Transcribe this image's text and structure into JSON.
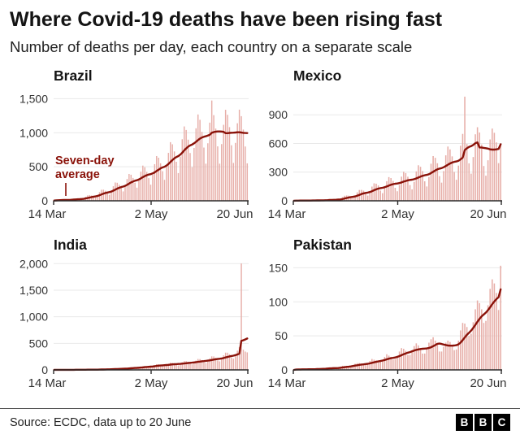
{
  "header": {
    "title": "Where Covid-19 deaths have been rising fast",
    "subtitle": "Number of deaths per day, each country on a separate scale"
  },
  "footer": {
    "source": "Source: ECDC, data up to 20 June",
    "logo_letters": [
      "B",
      "B",
      "C"
    ]
  },
  "chart_data": {
    "type": "bar",
    "title": "Where Covid-19 deaths have been rising fast",
    "subtitle": "Number of deaths per day, each country on a separate scale",
    "legend": "bars = daily deaths, dark line = seven-day average",
    "xticks": [
      "14 Mar",
      "2 May",
      "20 Jun"
    ],
    "style": {
      "bar_color": "#e7aea8",
      "line_color": "#8a1209",
      "annotation_color": "#8a1209",
      "axis_color": "#2b2b2b",
      "grid_color": "#e9e9e9",
      "tick_color": "#333333"
    },
    "charts": [
      {
        "title": "Brazil",
        "ymax": 1600,
        "yticks": [
          {
            "value": 0,
            "label": "0"
          },
          {
            "value": 500,
            "label": "500"
          },
          {
            "value": 1000,
            "label": "1,000"
          },
          {
            "value": 1500,
            "label": "1,500"
          }
        ],
        "annotation_lines": [
          "Seven-day",
          "average"
        ],
        "values": [
          4,
          8,
          12,
          16,
          16,
          15,
          12,
          8,
          15,
          24,
          32,
          34,
          32,
          26,
          19,
          37,
          59,
          80,
          84,
          79,
          66,
          50,
          85,
          127,
          162,
          163,
          147,
          120,
          88,
          147,
          214,
          269,
          265,
          236,
          190,
          138,
          224,
          320,
          394,
          383,
          336,
          267,
          193,
          307,
          428,
          517,
          493,
          425,
          333,
          237,
          382,
          538,
          657,
          633,
          551,
          435,
          308,
          498,
          704,
          861,
          830,
          725,
          573,
          407,
          649,
          904,
          1092,
          1040,
          898,
          702,
          495,
          776,
          1065,
          1268,
          1190,
          1013,
          782,
          545,
          845,
          1148,
          1473,
          1258,
          1061,
          800,
          545,
          833,
          1116,
          1337,
          1263,
          1082,
          816,
          556,
          850,
          1139,
          1339,
          1243,
          1046,
          798,
          550
        ]
      },
      {
        "title": "Mexico",
        "ymax": 1140,
        "yticks": [
          {
            "value": 0,
            "label": "0"
          },
          {
            "value": 300,
            "label": "300"
          },
          {
            "value": 600,
            "label": "600"
          },
          {
            "value": 900,
            "label": "900"
          }
        ],
        "values": [
          1,
          2,
          2,
          4,
          4,
          3,
          2,
          2,
          3,
          5,
          6,
          7,
          7,
          5,
          4,
          7,
          12,
          15,
          16,
          15,
          11,
          11,
          21,
          38,
          53,
          56,
          54,
          38,
          30,
          54,
          89,
          113,
          114,
          106,
          72,
          55,
          94,
          149,
          183,
          179,
          161,
          107,
          80,
          133,
          205,
          248,
          238,
          208,
          136,
          100,
          165,
          253,
          304,
          290,
          252,
          164,
          120,
          199,
          308,
          372,
          356,
          311,
          204,
          150,
          249,
          388,
          468,
          450,
          393,
          258,
          190,
          311,
          476,
          568,
          538,
          465,
          302,
          220,
          368,
          576,
          700,
          1090,
          594,
          392,
          284,
          458,
          696,
          770,
          715,
          589,
          364,
          263,
          424,
          642,
          756,
          712,
          611,
          394,
          600
        ]
      },
      {
        "title": "India",
        "ymax": 2050,
        "yticks": [
          {
            "value": 0,
            "label": "0"
          },
          {
            "value": 500,
            "label": "500"
          },
          {
            "value": 1000,
            "label": "1,000"
          },
          {
            "value": 1500,
            "label": "1,500"
          },
          {
            "value": 2000,
            "label": "2,000"
          }
        ],
        "values": [
          1,
          1,
          1,
          1,
          2,
          2,
          2,
          1,
          2,
          3,
          4,
          4,
          3,
          3,
          3,
          4,
          4,
          6,
          6,
          5,
          4,
          4,
          7,
          10,
          13,
          13,
          14,
          12,
          11,
          15,
          21,
          25,
          25,
          24,
          19,
          18,
          26,
          35,
          45,
          47,
          45,
          37,
          32,
          45,
          59,
          71,
          73,
          71,
          57,
          52,
          71,
          90,
          107,
          107,
          98,
          77,
          70,
          93,
          117,
          136,
          133,
          120,
          94,
          84,
          112,
          142,
          166,
          164,
          148,
          117,
          105,
          140,
          176,
          206,
          204,
          184,
          144,
          130,
          172,
          218,
          255,
          253,
          228,
          179,
          161,
          216,
          275,
          325,
          324,
          294,
          232,
          212,
          285,
          363,
          429,
          2003,
          380,
          345,
          330
        ]
      },
      {
        "title": "Pakistan",
        "ymax": 160,
        "yticks": [
          {
            "value": 0,
            "label": "0"
          },
          {
            "value": 50,
            "label": "50"
          },
          {
            "value": 100,
            "label": "100"
          },
          {
            "value": 150,
            "label": "150"
          }
        ],
        "values": [
          0,
          1,
          1,
          1,
          1,
          1,
          1,
          1,
          1,
          1,
          1,
          2,
          2,
          2,
          2,
          2,
          3,
          3,
          3,
          3,
          2,
          3,
          5,
          6,
          6,
          6,
          5,
          5,
          7,
          9,
          10,
          10,
          9,
          7,
          8,
          10,
          13,
          16,
          15,
          14,
          11,
          12,
          15,
          19,
          23,
          21,
          19,
          15,
          16,
          21,
          27,
          32,
          31,
          28,
          22,
          22,
          29,
          35,
          39,
          36,
          32,
          24,
          24,
          31,
          40,
          45,
          48,
          43,
          37,
          27,
          27,
          34,
          40,
          43,
          41,
          37,
          29,
          30,
          43,
          58,
          69,
          68,
          63,
          50,
          53,
          70,
          89,
          102,
          98,
          89,
          69,
          72,
          95,
          119,
          133,
          127,
          113,
          88,
          153
        ]
      }
    ]
  }
}
